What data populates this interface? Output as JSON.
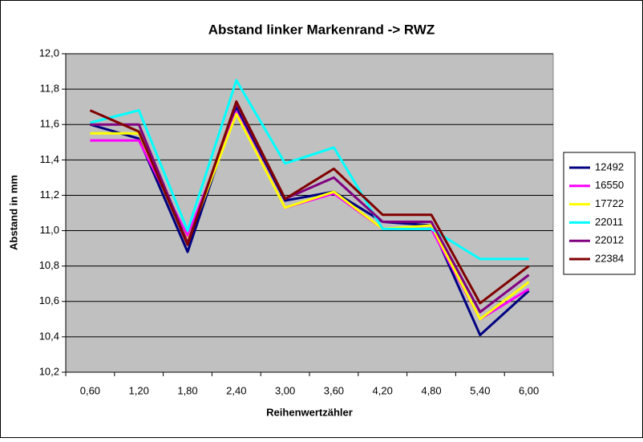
{
  "chart_data": {
    "type": "line",
    "title": "Abstand linker Markenrand -> RWZ",
    "x_label": "Reihenwertzähler",
    "y_label": "Abstand in mm",
    "categories": [
      "0,60",
      "1,20",
      "1,80",
      "2,40",
      "3,00",
      "3,60",
      "4,20",
      "4,80",
      "5,40",
      "6,00"
    ],
    "series": [
      {
        "name": "12492",
        "color": "#000080",
        "values": [
          11.6,
          11.52,
          10.88,
          11.7,
          11.17,
          11.22,
          11.05,
          11.03,
          10.41,
          10.66
        ]
      },
      {
        "name": "16550",
        "color": "#ff00ff",
        "values": [
          11.51,
          11.51,
          10.97,
          11.67,
          11.13,
          11.21,
          11.01,
          11.01,
          10.5,
          10.67
        ]
      },
      {
        "name": "17722",
        "color": "#ffff00",
        "values": [
          11.55,
          11.55,
          10.94,
          11.66,
          11.13,
          11.22,
          11.01,
          11.03,
          10.5,
          10.71
        ]
      },
      {
        "name": "22011",
        "color": "#00ffff",
        "values": [
          11.61,
          11.68,
          11.0,
          11.85,
          11.38,
          11.47,
          11.01,
          11.01,
          10.84,
          10.84
        ]
      },
      {
        "name": "22012",
        "color": "#800080",
        "values": [
          11.6,
          11.6,
          10.93,
          11.72,
          11.18,
          11.3,
          11.05,
          11.05,
          10.54,
          10.75
        ]
      },
      {
        "name": "22384",
        "color": "#800000",
        "values": [
          11.68,
          11.56,
          10.92,
          11.73,
          11.18,
          11.35,
          11.09,
          11.09,
          10.59,
          10.8
        ]
      }
    ],
    "ylim": [
      10.2,
      12.0
    ],
    "yticks": [
      {
        "value": 10.2,
        "label": "10,2"
      },
      {
        "value": 10.4,
        "label": "10,4"
      },
      {
        "value": 10.6,
        "label": "10,6"
      },
      {
        "value": 10.8,
        "label": "10,8"
      },
      {
        "value": 11.0,
        "label": "11,0"
      },
      {
        "value": 11.2,
        "label": "11,2"
      },
      {
        "value": 11.4,
        "label": "11,4"
      },
      {
        "value": 11.6,
        "label": "11,6"
      },
      {
        "value": 11.8,
        "label": "11,8"
      },
      {
        "value": 12.0,
        "label": "12,0"
      }
    ],
    "grid": true,
    "legend": "right"
  }
}
